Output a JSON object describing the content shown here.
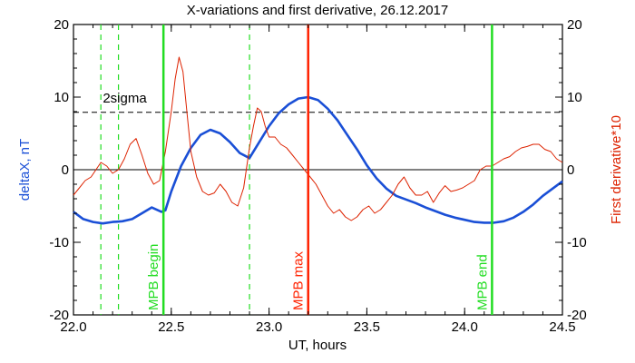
{
  "chart_data": {
    "type": "line",
    "title": "X-variations and first derivative, 26.12.2017",
    "xlabel": "UT, hours",
    "ylabel_left": "deltaX, nT",
    "ylabel_right": "First derivative*10",
    "xlim": [
      22.0,
      24.5
    ],
    "ylim": [
      -20,
      20
    ],
    "x_ticks": [
      "22.0",
      "22.5",
      "23.0",
      "23.5",
      "24.0",
      "24.5"
    ],
    "y_ticks": [
      "20",
      "10",
      "0",
      "-10",
      "-20"
    ],
    "threshold": {
      "label": "2sigma",
      "value": 7.9
    },
    "zero_line": 0,
    "markers": [
      {
        "label": "MPB begin",
        "x": 22.46,
        "color": "#22dd22"
      },
      {
        "label": "MPB max",
        "x": 23.2,
        "color": "#ff2200"
      },
      {
        "label": "MPB end",
        "x": 24.14,
        "color": "#22dd22"
      }
    ],
    "dashed_markers": [
      22.14,
      22.23,
      22.9
    ],
    "series": [
      {
        "name": "deltaX",
        "axis": "left",
        "color": "#1a4fd6",
        "x": [
          22.0,
          22.05,
          22.1,
          22.15,
          22.2,
          22.25,
          22.3,
          22.35,
          22.4,
          22.45,
          22.47,
          22.5,
          22.55,
          22.6,
          22.65,
          22.7,
          22.75,
          22.8,
          22.85,
          22.9,
          22.95,
          23.0,
          23.05,
          23.1,
          23.15,
          23.2,
          23.25,
          23.3,
          23.35,
          23.4,
          23.45,
          23.5,
          23.55,
          23.6,
          23.65,
          23.7,
          23.75,
          23.8,
          23.85,
          23.9,
          23.95,
          24.0,
          24.05,
          24.1,
          24.15,
          24.2,
          24.25,
          24.3,
          24.35,
          24.4,
          24.45,
          24.5
        ],
        "y": [
          -5.8,
          -6.8,
          -7.2,
          -7.4,
          -7.2,
          -7.1,
          -6.8,
          -6.0,
          -5.2,
          -5.8,
          -5.6,
          -3.0,
          0.5,
          3.0,
          4.8,
          5.5,
          5.0,
          3.8,
          2.3,
          1.6,
          3.8,
          6.0,
          7.8,
          9.0,
          9.8,
          10.0,
          9.6,
          8.4,
          6.8,
          4.8,
          2.8,
          0.6,
          -1.2,
          -2.6,
          -3.6,
          -4.1,
          -4.6,
          -5.2,
          -5.7,
          -6.2,
          -6.6,
          -6.9,
          -7.2,
          -7.3,
          -7.3,
          -7.1,
          -6.6,
          -5.8,
          -4.8,
          -3.6,
          -2.6,
          -1.6
        ]
      },
      {
        "name": "First derivative*10",
        "axis": "right",
        "color": "#dd2200",
        "x": [
          22.0,
          22.03,
          22.06,
          22.09,
          22.12,
          22.14,
          22.17,
          22.2,
          22.23,
          22.26,
          22.29,
          22.32,
          22.35,
          22.38,
          22.41,
          22.44,
          22.47,
          22.5,
          22.52,
          22.54,
          22.56,
          22.58,
          22.6,
          22.63,
          22.66,
          22.69,
          22.72,
          22.75,
          22.78,
          22.81,
          22.84,
          22.87,
          22.9,
          22.92,
          22.94,
          22.96,
          22.98,
          23.0,
          23.03,
          23.06,
          23.09,
          23.12,
          23.15,
          23.18,
          23.21,
          23.24,
          23.27,
          23.3,
          23.33,
          23.36,
          23.39,
          23.42,
          23.45,
          23.48,
          23.51,
          23.54,
          23.57,
          23.6,
          23.63,
          23.66,
          23.69,
          23.72,
          23.75,
          23.78,
          23.81,
          23.84,
          23.87,
          23.9,
          23.93,
          23.96,
          23.99,
          24.02,
          24.05,
          24.08,
          24.11,
          24.14,
          24.17,
          24.2,
          24.23,
          24.26,
          24.29,
          24.32,
          24.35,
          24.38,
          24.41,
          24.44,
          24.47,
          24.5
        ],
        "y": [
          -3.5,
          -2.5,
          -1.5,
          -1.0,
          0.2,
          1.0,
          0.5,
          -0.5,
          0.0,
          1.5,
          3.5,
          4.3,
          2.0,
          -0.5,
          -2.0,
          -1.5,
          2.5,
          8.0,
          12.5,
          15.5,
          13.5,
          8.0,
          2.5,
          -1.0,
          -3.0,
          -3.5,
          -3.2,
          -2.0,
          -3.0,
          -4.5,
          -5.0,
          -2.5,
          3.0,
          6.0,
          8.5,
          8.0,
          6.0,
          4.5,
          4.5,
          3.5,
          3.0,
          2.0,
          1.0,
          0.0,
          -1.0,
          -2.0,
          -3.5,
          -5.0,
          -6.0,
          -5.5,
          -6.5,
          -7.0,
          -6.5,
          -5.5,
          -5.0,
          -6.0,
          -5.5,
          -4.5,
          -3.5,
          -2.0,
          -1.0,
          -2.5,
          -3.5,
          -3.5,
          -3.0,
          -4.5,
          -3.2,
          -2.2,
          -3.0,
          -2.8,
          -2.5,
          -2.0,
          -1.5,
          0.0,
          0.5,
          0.5,
          1.0,
          1.5,
          1.8,
          2.5,
          3.0,
          3.2,
          3.5,
          3.5,
          2.8,
          2.5,
          1.5,
          1.0
        ]
      }
    ],
    "grid": false,
    "legend": "none"
  }
}
